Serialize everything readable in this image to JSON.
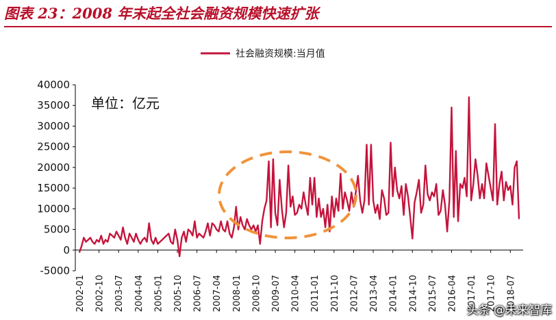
{
  "figure": {
    "title": "图表 23：2008 年末起全社会融资规模快速扩张",
    "unit_label": "单位：亿元",
    "watermark": "头条 @未来智库"
  },
  "colors": {
    "title": "#b8102a",
    "series_line": "#c4143c",
    "annotation_ellipse": "#f0933a"
  },
  "chart_data": {
    "type": "line",
    "title": "",
    "xlabel": "",
    "ylabel": "",
    "ylim": [
      -5000,
      40000
    ],
    "y_ticks": [
      -5000,
      0,
      5000,
      10000,
      15000,
      20000,
      25000,
      30000,
      35000,
      40000
    ],
    "y_tick_labels": [
      "-5000",
      "0",
      "5000",
      "10000",
      "15000",
      "20000",
      "25000",
      "30000",
      "35000",
      "40000"
    ],
    "x_ticks": [
      "2002-01",
      "2002-10",
      "2003-07",
      "2004-04",
      "2005-01",
      "2005-10",
      "2006-07",
      "2007-04",
      "2008-01",
      "2008-10",
      "2009-07",
      "2010-04",
      "2011-01",
      "2011-10",
      "2012-07",
      "2013-04",
      "2014-01",
      "2014-10",
      "2015-07",
      "2016-04",
      "2017-01",
      "2017-10",
      "2018-07"
    ],
    "grid": false,
    "legend_position": "top-center",
    "annotation": "dashed orange ellipse around 2008-10 to 2012-07",
    "series": [
      {
        "name": "社会融资规模:当月值",
        "start": "2002-01",
        "frequency": "monthly",
        "values": [
          -500,
          1000,
          3000,
          2000,
          2500,
          3000,
          2000,
          1500,
          2500,
          2000,
          3500,
          1500,
          2500,
          2000,
          4000,
          3500,
          3000,
          4500,
          3500,
          2500,
          5500,
          3000,
          1500,
          4000,
          3000,
          2000,
          4000,
          2500,
          1500,
          2500,
          3000,
          2000,
          6500,
          2500,
          1500,
          3000,
          1500,
          2000,
          2500,
          3000,
          3500,
          4000,
          2000,
          1500,
          5000,
          2500,
          -1500,
          3000,
          4500,
          2000,
          5000,
          4500,
          3500,
          7000,
          3000,
          4000,
          3500,
          3000,
          4500,
          6500,
          3500,
          6500,
          6000,
          5000,
          4500,
          7000,
          5000,
          4500,
          7000,
          4000,
          3000,
          5500,
          10500,
          5000,
          8000,
          6000,
          5000,
          7500,
          6000,
          5000,
          6000,
          4500,
          6000,
          1500,
          7000,
          10000,
          12000,
          21500,
          5500,
          22000,
          9000,
          6000,
          17000,
          10000,
          5500,
          9000,
          20500,
          10500,
          13000,
          8500,
          9000,
          11000,
          10000,
          14000,
          11000,
          8500,
          17500,
          11000,
          17500,
          8000,
          12500,
          8000,
          10000,
          5500,
          11000,
          4500,
          13000,
          8000,
          12500,
          9500,
          18500,
          10000,
          14000,
          12000,
          9500,
          14000,
          10500,
          14000,
          18000,
          12000,
          9000,
          12000,
          25500,
          11000,
          25500,
          12000,
          9000,
          11000,
          7500,
          14500,
          12500,
          8500,
          9000,
          26000,
          13000,
          20000,
          14500,
          12500,
          15500,
          8500,
          16000,
          13000,
          8000,
          2800,
          11500,
          14000,
          17000,
          9000,
          11000,
          20500,
          13500,
          12000,
          14000,
          13000,
          16000,
          8500,
          9500,
          14500,
          11000,
          4500,
          12000,
          34500,
          8000,
          24000,
          7000,
          16000,
          15000,
          17500,
          13000,
          37000,
          12000,
          16000,
          22000,
          18000,
          12500,
          16000,
          12500,
          21000,
          18000,
          15000,
          12000,
          30500,
          11000,
          16000,
          19000,
          12000,
          16500,
          14500,
          15500,
          11000,
          20000,
          21500,
          7500
        ]
      }
    ]
  }
}
